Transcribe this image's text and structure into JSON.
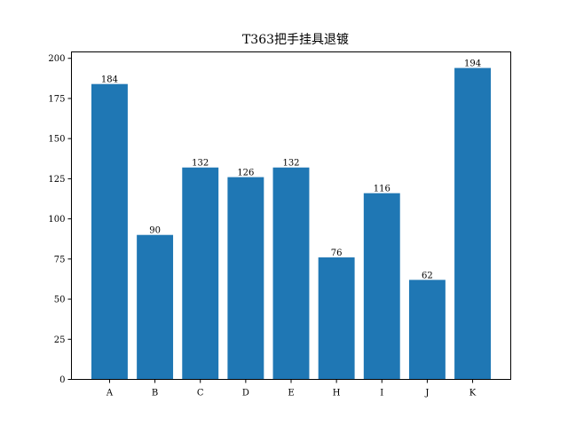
{
  "chart_data": {
    "type": "bar",
    "title": "T363把手挂具退镀",
    "xlabel": "",
    "ylabel": "",
    "categories": [
      "A",
      "B",
      "C",
      "D",
      "E",
      "H",
      "I",
      "J",
      "K"
    ],
    "values": [
      184,
      90,
      132,
      126,
      132,
      76,
      116,
      62,
      194
    ],
    "ylim": [
      0,
      204
    ],
    "yticks": [
      0,
      25,
      50,
      75,
      100,
      125,
      150,
      175,
      200
    ],
    "bar_color": "#1f77b4",
    "data_labels": true,
    "grid": false,
    "legend": "none"
  }
}
